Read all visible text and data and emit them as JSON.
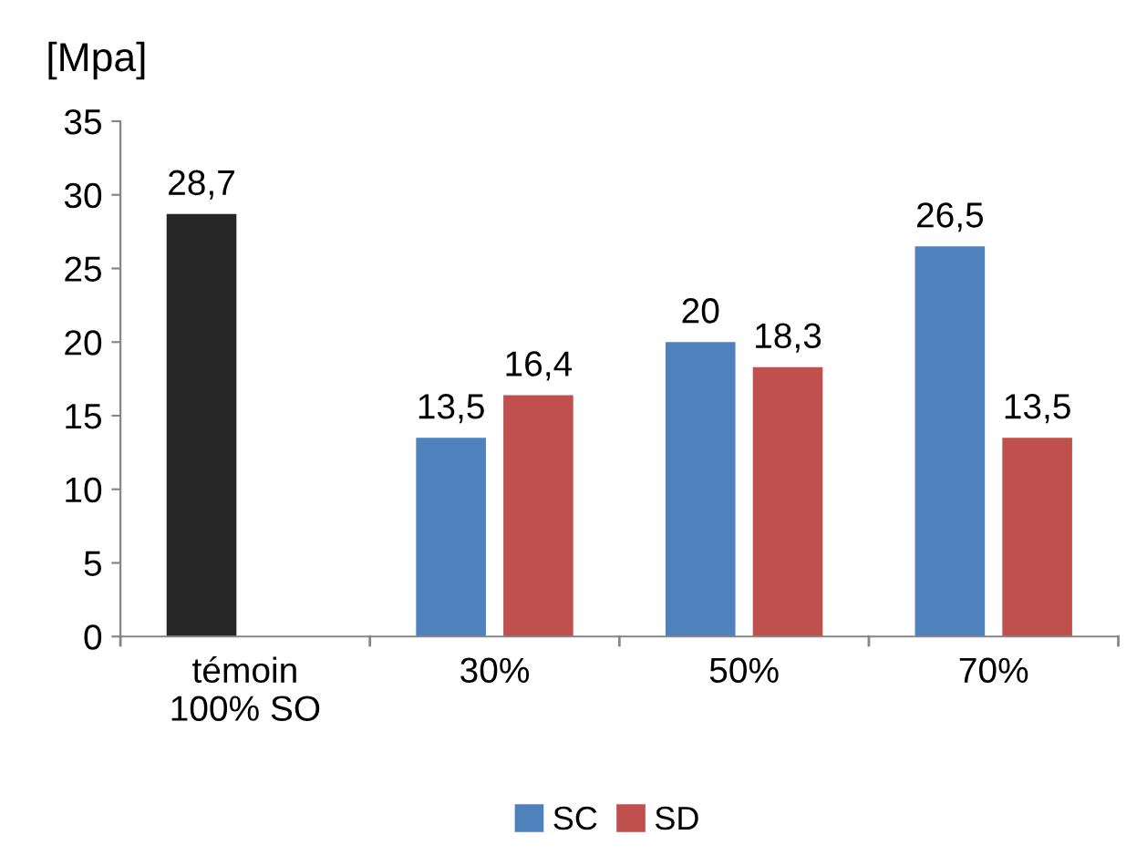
{
  "chart_data": {
    "type": "bar",
    "ylabel": "[Mpa]",
    "categories": [
      "témoin\n100% SO",
      "30%",
      "50%",
      "70%"
    ],
    "series": [
      {
        "name": "SC",
        "color": "#4f81bd",
        "colors": [
          "#262626",
          "#4f81bd",
          "#4f81bd",
          "#4f81bd"
        ],
        "values": [
          28.7,
          13.5,
          20,
          26.5
        ],
        "value_labels": [
          "28,7",
          "13,5",
          "20",
          "26,5"
        ]
      },
      {
        "name": "SD",
        "color": "#c0504d",
        "values": [
          null,
          16.4,
          18.3,
          13.5
        ],
        "value_labels": [
          null,
          "16,4",
          "18,3",
          "13,5"
        ]
      }
    ],
    "ylim": [
      0,
      35
    ],
    "yticks": [
      0,
      5,
      10,
      15,
      20,
      25,
      30,
      35
    ],
    "grid": false,
    "legend": "bottom"
  }
}
